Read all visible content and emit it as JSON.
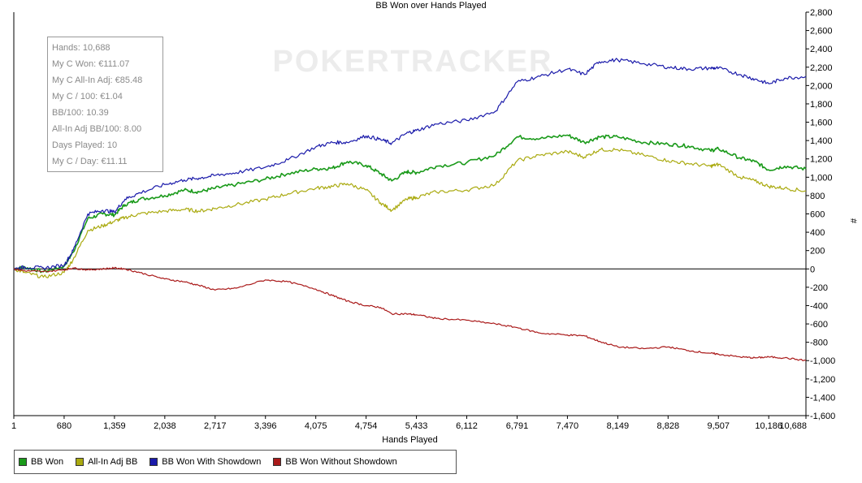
{
  "chart_data": {
    "type": "line",
    "title": "BB Won over Hands Played",
    "xlabel": "Hands Played",
    "ylabel": "#",
    "xlim": [
      1,
      10688
    ],
    "ylim": [
      -1600,
      2800
    ],
    "x_ticks": [
      1,
      680,
      1359,
      2038,
      2717,
      3396,
      4075,
      4754,
      5433,
      6112,
      6791,
      7470,
      8149,
      8828,
      9507,
      10186,
      10688
    ],
    "x_tick_labels": [
      "1",
      "680",
      "1,359",
      "2,038",
      "2,717",
      "3,396",
      "4,075",
      "4,754",
      "5,433",
      "6,112",
      "6,791",
      "7,470",
      "8,149",
      "8,828",
      "9,507",
      "10,186",
      "10,688"
    ],
    "y_ticks": [
      2800,
      2600,
      2400,
      2200,
      2000,
      1800,
      1600,
      1400,
      1200,
      1000,
      800,
      600,
      400,
      200,
      0,
      -200,
      -400,
      -600,
      -800,
      -1000,
      -1200,
      -1400,
      -1600
    ],
    "y_tick_labels": [
      "2,800",
      "2,600",
      "2,400",
      "2,200",
      "2,000",
      "1,800",
      "1,600",
      "1,400",
      "1,200",
      "1,000",
      "800",
      "600",
      "400",
      "200",
      "0",
      "-200",
      "-400",
      "-600",
      "-800",
      "-1,000",
      "-1,200",
      "-1,400",
      "-1,600"
    ],
    "grid": false,
    "legend_position": "bottom-left",
    "watermark": "POKERTRACKER",
    "series": [
      {
        "name": "BB Won",
        "color": "#1a9a1a",
        "points": [
          [
            1,
            0
          ],
          [
            150,
            20
          ],
          [
            400,
            -30
          ],
          [
            680,
            30
          ],
          [
            800,
            180
          ],
          [
            1000,
            550
          ],
          [
            1200,
            600
          ],
          [
            1359,
            590
          ],
          [
            1500,
            700
          ],
          [
            1700,
            760
          ],
          [
            2038,
            800
          ],
          [
            2300,
            860
          ],
          [
            2500,
            840
          ],
          [
            2717,
            880
          ],
          [
            3000,
            920
          ],
          [
            3396,
            980
          ],
          [
            3700,
            1040
          ],
          [
            4075,
            1090
          ],
          [
            4300,
            1100
          ],
          [
            4500,
            1170
          ],
          [
            4754,
            1130
          ],
          [
            4950,
            1040
          ],
          [
            5100,
            960
          ],
          [
            5300,
            1060
          ],
          [
            5433,
            1050
          ],
          [
            5700,
            1120
          ],
          [
            6112,
            1160
          ],
          [
            6500,
            1240
          ],
          [
            6791,
            1440
          ],
          [
            7100,
            1420
          ],
          [
            7470,
            1460
          ],
          [
            7700,
            1380
          ],
          [
            7900,
            1440
          ],
          [
            8149,
            1440
          ],
          [
            8500,
            1380
          ],
          [
            8828,
            1360
          ],
          [
            9100,
            1340
          ],
          [
            9400,
            1290
          ],
          [
            9507,
            1310
          ],
          [
            9800,
            1210
          ],
          [
            10000,
            1170
          ],
          [
            10186,
            1080
          ],
          [
            10400,
            1120
          ],
          [
            10688,
            1090
          ]
        ]
      },
      {
        "name": "All-In Adj BB",
        "color": "#aaaa10",
        "points": [
          [
            1,
            0
          ],
          [
            150,
            -40
          ],
          [
            400,
            -90
          ],
          [
            680,
            -40
          ],
          [
            800,
            100
          ],
          [
            1000,
            420
          ],
          [
            1200,
            470
          ],
          [
            1359,
            520
          ],
          [
            1500,
            560
          ],
          [
            1700,
            600
          ],
          [
            2038,
            630
          ],
          [
            2300,
            650
          ],
          [
            2500,
            630
          ],
          [
            2717,
            660
          ],
          [
            3000,
            700
          ],
          [
            3396,
            760
          ],
          [
            3700,
            820
          ],
          [
            4075,
            880
          ],
          [
            4300,
            900
          ],
          [
            4500,
            930
          ],
          [
            4754,
            860
          ],
          [
            4950,
            720
          ],
          [
            5100,
            640
          ],
          [
            5300,
            760
          ],
          [
            5433,
            780
          ],
          [
            5700,
            840
          ],
          [
            6112,
            860
          ],
          [
            6500,
            920
          ],
          [
            6791,
            1180
          ],
          [
            7100,
            1240
          ],
          [
            7470,
            1280
          ],
          [
            7700,
            1220
          ],
          [
            7900,
            1300
          ],
          [
            8149,
            1300
          ],
          [
            8500,
            1240
          ],
          [
            8828,
            1180
          ],
          [
            9100,
            1150
          ],
          [
            9400,
            1120
          ],
          [
            9507,
            1140
          ],
          [
            9800,
            1000
          ],
          [
            10000,
            960
          ],
          [
            10186,
            900
          ],
          [
            10400,
            880
          ],
          [
            10688,
            850
          ]
        ]
      },
      {
        "name": "BB Won With Showdown",
        "color": "#1a1aaa",
        "points": [
          [
            1,
            0
          ],
          [
            150,
            20
          ],
          [
            400,
            10
          ],
          [
            680,
            40
          ],
          [
            800,
            200
          ],
          [
            1000,
            600
          ],
          [
            1200,
            640
          ],
          [
            1359,
            620
          ],
          [
            1500,
            760
          ],
          [
            1700,
            830
          ],
          [
            2038,
            920
          ],
          [
            2300,
            970
          ],
          [
            2500,
            990
          ],
          [
            2717,
            1020
          ],
          [
            3000,
            1050
          ],
          [
            3396,
            1110
          ],
          [
            3700,
            1190
          ],
          [
            4075,
            1330
          ],
          [
            4300,
            1380
          ],
          [
            4500,
            1380
          ],
          [
            4754,
            1450
          ],
          [
            4950,
            1410
          ],
          [
            5100,
            1370
          ],
          [
            5300,
            1480
          ],
          [
            5433,
            1510
          ],
          [
            5700,
            1580
          ],
          [
            6112,
            1620
          ],
          [
            6500,
            1720
          ],
          [
            6791,
            2040
          ],
          [
            7100,
            2100
          ],
          [
            7470,
            2180
          ],
          [
            7700,
            2120
          ],
          [
            7900,
            2260
          ],
          [
            8149,
            2280
          ],
          [
            8500,
            2240
          ],
          [
            8828,
            2200
          ],
          [
            9100,
            2180
          ],
          [
            9400,
            2190
          ],
          [
            9507,
            2190
          ],
          [
            9800,
            2120
          ],
          [
            10000,
            2070
          ],
          [
            10186,
            2020
          ],
          [
            10400,
            2080
          ],
          [
            10688,
            2100
          ]
        ]
      },
      {
        "name": "BB Won Without Showdown",
        "color": "#aa1a1a",
        "points": [
          [
            1,
            0
          ],
          [
            150,
            -20
          ],
          [
            400,
            -30
          ],
          [
            680,
            -10
          ],
          [
            800,
            10
          ],
          [
            1000,
            -10
          ],
          [
            1200,
            0
          ],
          [
            1359,
            10
          ],
          [
            1500,
            0
          ],
          [
            1700,
            -40
          ],
          [
            2038,
            -110
          ],
          [
            2300,
            -140
          ],
          [
            2500,
            -180
          ],
          [
            2717,
            -230
          ],
          [
            3000,
            -210
          ],
          [
            3396,
            -120
          ],
          [
            3700,
            -140
          ],
          [
            4075,
            -220
          ],
          [
            4300,
            -290
          ],
          [
            4500,
            -350
          ],
          [
            4754,
            -400
          ],
          [
            4950,
            -420
          ],
          [
            5100,
            -490
          ],
          [
            5300,
            -490
          ],
          [
            5433,
            -500
          ],
          [
            5700,
            -540
          ],
          [
            6112,
            -560
          ],
          [
            6500,
            -600
          ],
          [
            6791,
            -640
          ],
          [
            7100,
            -700
          ],
          [
            7470,
            -720
          ],
          [
            7700,
            -730
          ],
          [
            7900,
            -790
          ],
          [
            8149,
            -850
          ],
          [
            8500,
            -870
          ],
          [
            8828,
            -850
          ],
          [
            9100,
            -890
          ],
          [
            9400,
            -920
          ],
          [
            9507,
            -930
          ],
          [
            9800,
            -960
          ],
          [
            10000,
            -970
          ],
          [
            10186,
            -960
          ],
          [
            10400,
            -970
          ],
          [
            10688,
            -1000
          ]
        ]
      }
    ]
  },
  "info_box": {
    "lines": [
      "Hands: 10,688",
      "My C Won: €111.07",
      "My C All-In Adj: €85.48",
      "My C / 100: €1.04",
      "BB/100: 10.39",
      "All-In Adj BB/100: 8.00",
      "Days Played: 10",
      "My C / Day: €11.11"
    ]
  },
  "legend": {
    "items": [
      {
        "label": "BB Won",
        "color": "#1a9a1a"
      },
      {
        "label": "All-In Adj BB",
        "color": "#aaaa10"
      },
      {
        "label": "BB Won With Showdown",
        "color": "#1a1aaa"
      },
      {
        "label": "BB Won Without Showdown",
        "color": "#aa1a1a"
      }
    ]
  }
}
